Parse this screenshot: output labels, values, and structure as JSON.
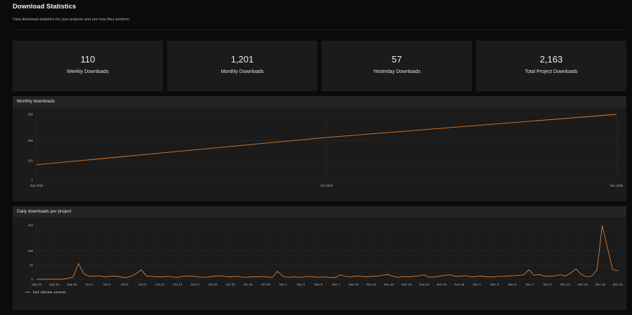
{
  "header": {
    "title": "Download Statistics",
    "subtitle": "View download statistics for your projects and see how they perform."
  },
  "stats": [
    {
      "value": "110",
      "label": "Weekly Downloads"
    },
    {
      "value": "1,201",
      "label": "Monthly Downloads"
    },
    {
      "value": "57",
      "label": "Yesterday Downloads"
    },
    {
      "value": "2,163",
      "label": "Total Project Downloads"
    }
  ],
  "colors": {
    "accent": "#e07a2a",
    "background": "#0b0b0b",
    "card": "#1b1b1b",
    "header": "#242424"
  },
  "chart_data": [
    {
      "type": "line",
      "title": "Monthly downloads",
      "x": [
        "Sep 2025",
        "Oct 2025",
        "Nov 2025"
      ],
      "series": [
        {
          "values": [
            118,
            325,
            500
          ]
        }
      ],
      "yticks": [
        0,
        150,
        300,
        500
      ],
      "ylim": [
        0,
        500
      ],
      "grid": true
    },
    {
      "type": "line",
      "title": "Daily downloads per project",
      "x_tick_labels": [
        "Sep 23",
        "Sep 26",
        "Sep 29",
        "Oct 2",
        "Oct 4",
        "Oct 6",
        "Oct 8",
        "Oct 11",
        "Oct 14",
        "Oct 17",
        "Oct 20",
        "Oct 23",
        "Oct 26",
        "Oct 29",
        "Nov 1",
        "Nov 3",
        "Nov 5",
        "Nov 7",
        "Nov 10",
        "Nov 13",
        "Nov 16",
        "Nov 19",
        "Nov 22",
        "Nov 25",
        "Nov 28",
        "Dec 1",
        "Dec 3",
        "Dec 5",
        "Dec 7",
        "Dec 9",
        "Dec 12",
        "Dec 15",
        "Dec 18",
        "Dec 21"
      ],
      "yticks": [
        0,
        90,
        180,
        343
      ],
      "ylim": [
        0,
        343
      ],
      "series": [
        {
          "name": "fnaf: ultimate universe",
          "values": [
            0,
            0,
            0,
            0,
            0,
            0,
            5,
            15,
            100,
            35,
            20,
            18,
            22,
            15,
            18,
            20,
            15,
            10,
            18,
            35,
            60,
            20,
            18,
            15,
            15,
            18,
            14,
            12,
            18,
            20,
            18,
            14,
            12,
            15,
            20,
            22,
            18,
            15,
            18,
            14,
            12,
            15,
            15,
            18,
            14,
            12,
            50,
            20,
            12,
            15,
            12,
            14,
            18,
            15,
            12,
            15,
            12,
            10,
            28,
            18,
            14,
            20,
            18,
            15,
            18,
            20,
            25,
            30,
            20,
            12,
            18,
            15,
            18,
            22,
            28,
            12,
            15,
            20,
            25,
            28,
            18,
            20,
            22,
            15,
            18,
            20,
            15,
            14,
            18,
            18,
            20,
            22,
            25,
            28,
            60,
            25,
            30,
            20,
            18,
            22,
            28,
            20,
            40,
            65,
            30,
            15,
            20,
            60,
            340,
            200,
            60,
            55
          ]
        }
      ],
      "grid": true
    }
  ]
}
